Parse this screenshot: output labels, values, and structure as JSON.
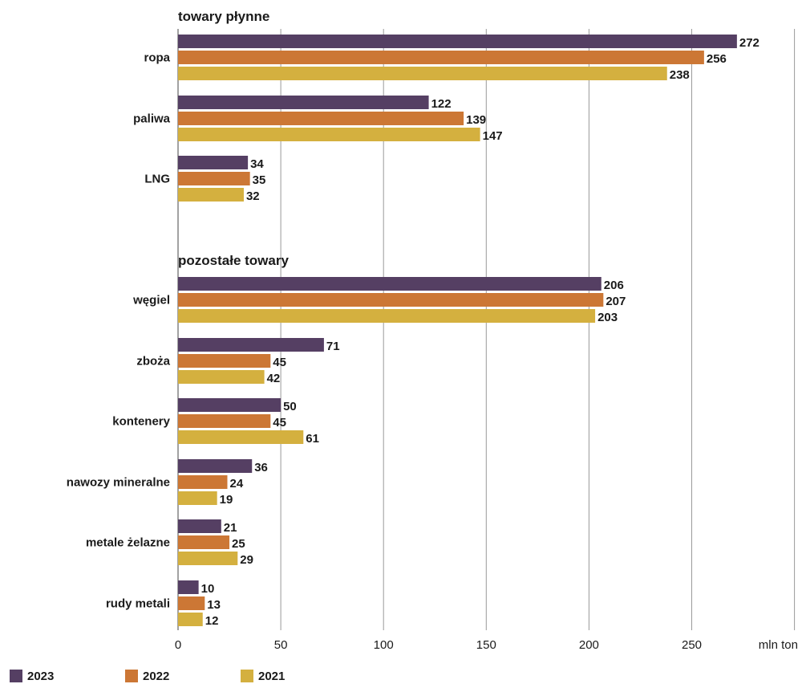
{
  "chart_data": {
    "type": "bar",
    "orientation": "horizontal",
    "groups": [
      {
        "title": "towary płynne",
        "categories": [
          "ropa",
          "paliwa",
          "LNG"
        ]
      },
      {
        "title": "pozostałe towary",
        "categories": [
          "węgiel",
          "zboża",
          "kontenery",
          "nawozy mineralne",
          "metale żelazne",
          "rudy metali"
        ]
      }
    ],
    "categories": [
      "ropa",
      "paliwa",
      "LNG",
      "węgiel",
      "zboża",
      "kontenery",
      "nawozy mineralne",
      "metale żelazne",
      "rudy metali"
    ],
    "series": [
      {
        "name": "2023",
        "color": "#553f63",
        "values": [
          272,
          122,
          34,
          206,
          71,
          50,
          36,
          21,
          10
        ]
      },
      {
        "name": "2022",
        "color": "#cc7735",
        "values": [
          256,
          139,
          35,
          207,
          45,
          45,
          24,
          25,
          13
        ]
      },
      {
        "name": "2021",
        "color": "#d4b03f",
        "values": [
          238,
          147,
          32,
          203,
          42,
          61,
          19,
          29,
          12
        ]
      }
    ],
    "xticks": [
      "0",
      "50",
      "100",
      "150",
      "200",
      "250"
    ],
    "xlim": [
      0,
      300
    ],
    "xunit": "mln ton",
    "grid": true,
    "legend_position": "bottom-left"
  }
}
